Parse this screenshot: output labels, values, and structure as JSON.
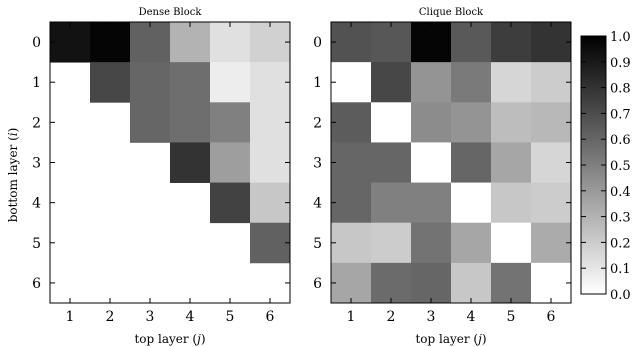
{
  "chart_data": {
    "type": "heatmap",
    "colormap": "greyscale (0 = white, 1 = black)",
    "shared_ylabel_parts": [
      "bottom layer (",
      "i",
      ")"
    ],
    "colorbar": {
      "range": [
        0.0,
        1.0
      ],
      "tick_labels": [
        "0.0",
        "0.1",
        "0.2",
        "0.3",
        "0.4",
        "0.5",
        "0.6",
        "0.7",
        "0.8",
        "0.9",
        "1.0"
      ]
    },
    "panels": [
      {
        "title": "Dense Block",
        "xlabel_parts": [
          "top layer (",
          "j",
          ")"
        ],
        "x_tick_labels": [
          "1",
          "2",
          "3",
          "4",
          "5",
          "6"
        ],
        "y_tick_labels": [
          "0",
          "1",
          "2",
          "3",
          "4",
          "5",
          "6"
        ],
        "rows": 7,
        "cols": 6,
        "values": [
          [
            0.93,
            0.98,
            0.62,
            0.3,
            0.12,
            0.18
          ],
          [
            null,
            0.72,
            0.6,
            0.57,
            0.07,
            0.12
          ],
          [
            null,
            null,
            0.6,
            0.57,
            0.5,
            0.12
          ],
          [
            null,
            null,
            null,
            0.8,
            0.38,
            0.12
          ],
          [
            null,
            null,
            null,
            null,
            0.74,
            0.22
          ],
          [
            null,
            null,
            null,
            null,
            null,
            0.62
          ],
          [
            null,
            null,
            null,
            null,
            null,
            null
          ]
        ]
      },
      {
        "title": "Clique Block",
        "xlabel_parts": [
          "top layer (",
          "j",
          ")"
        ],
        "x_tick_labels": [
          "1",
          "2",
          "3",
          "4",
          "5",
          "6"
        ],
        "y_tick_labels": [
          "0",
          "1",
          "2",
          "3",
          "4",
          "5",
          "6"
        ],
        "rows": 7,
        "cols": 6,
        "values": [
          [
            0.68,
            0.66,
            0.98,
            0.65,
            0.76,
            0.8
          ],
          [
            0.0,
            0.72,
            0.42,
            0.52,
            0.16,
            0.2
          ],
          [
            0.64,
            0.0,
            0.45,
            0.42,
            0.26,
            0.28
          ],
          [
            0.6,
            0.6,
            0.0,
            0.6,
            0.35,
            0.16
          ],
          [
            0.6,
            0.5,
            0.5,
            0.0,
            0.22,
            0.2
          ],
          [
            0.22,
            0.2,
            0.55,
            0.35,
            0.0,
            0.33
          ],
          [
            0.35,
            0.58,
            0.6,
            0.22,
            0.55,
            0.0
          ]
        ]
      }
    ]
  }
}
